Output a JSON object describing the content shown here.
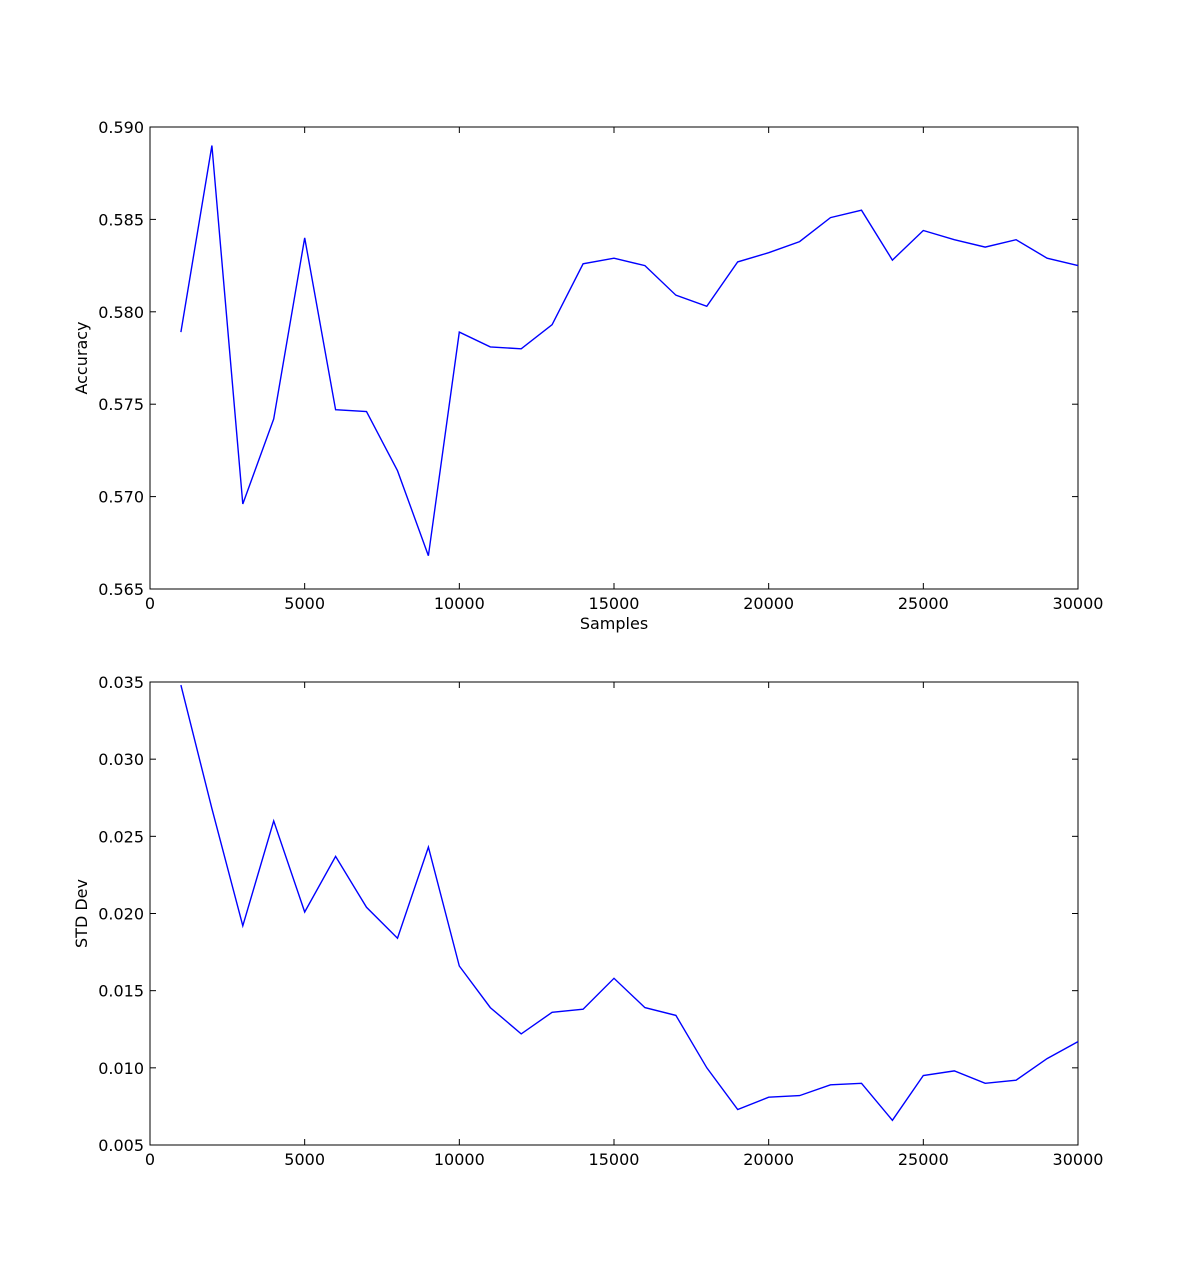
{
  "chart_data": [
    {
      "type": "line",
      "xlabel": "Samples",
      "ylabel": "Accuracy",
      "xlim": [
        0,
        30000
      ],
      "ylim": [
        0.565,
        0.59
      ],
      "xticks": [
        "0",
        "5000",
        "10000",
        "15000",
        "20000",
        "25000",
        "30000"
      ],
      "yticks": [
        "0.565",
        "0.570",
        "0.575",
        "0.580",
        "0.585",
        "0.590"
      ],
      "grid": false,
      "color": "#0000ff",
      "x": [
        1000,
        2000,
        3000,
        4000,
        5000,
        6000,
        7000,
        8000,
        9000,
        10000,
        11000,
        12000,
        13000,
        14000,
        15000,
        16000,
        17000,
        18000,
        19000,
        20000,
        21000,
        22000,
        23000,
        24000,
        25000,
        26000,
        27000,
        28000,
        29000,
        30000
      ],
      "y": [
        0.5789,
        0.589,
        0.5696,
        0.5742,
        0.584,
        0.5747,
        0.5746,
        0.5714,
        0.5668,
        0.5789,
        0.5781,
        0.578,
        0.5793,
        0.5826,
        0.5829,
        0.5825,
        0.5809,
        0.5803,
        0.5827,
        0.5832,
        0.5838,
        0.5851,
        0.5855,
        0.5828,
        0.5844,
        0.5839,
        0.5835,
        0.5839,
        0.5829,
        0.5825
      ]
    },
    {
      "type": "line",
      "xlabel": "",
      "ylabel": "STD Dev",
      "xlim": [
        0,
        30000
      ],
      "ylim": [
        0.005,
        0.035
      ],
      "xticks": [
        "0",
        "5000",
        "10000",
        "15000",
        "20000",
        "25000",
        "30000"
      ],
      "yticks": [
        "0.005",
        "0.010",
        "0.015",
        "0.020",
        "0.025",
        "0.030",
        "0.035"
      ],
      "grid": false,
      "color": "#0000ff",
      "x": [
        1000,
        2000,
        3000,
        4000,
        5000,
        6000,
        7000,
        8000,
        9000,
        10000,
        11000,
        12000,
        13000,
        14000,
        15000,
        16000,
        17000,
        18000,
        19000,
        20000,
        21000,
        22000,
        23000,
        24000,
        25000,
        26000,
        27000,
        28000,
        29000,
        30000
      ],
      "y": [
        0.0348,
        0.0268,
        0.0192,
        0.026,
        0.0201,
        0.0237,
        0.0204,
        0.0184,
        0.0243,
        0.0166,
        0.0139,
        0.0122,
        0.0136,
        0.0138,
        0.0158,
        0.0139,
        0.0134,
        0.01,
        0.0073,
        0.0081,
        0.0082,
        0.0089,
        0.009,
        0.0066,
        0.0095,
        0.0098,
        0.009,
        0.0092,
        0.0106,
        0.0117
      ]
    }
  ]
}
